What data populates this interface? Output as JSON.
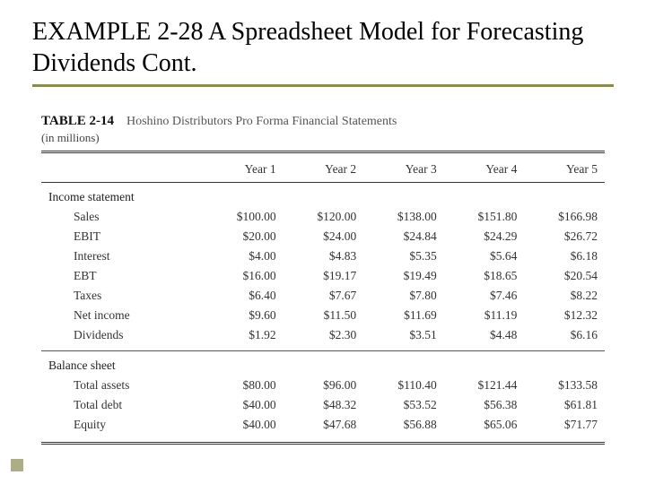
{
  "slide": {
    "title": "EXAMPLE 2-28 A Spreadsheet Model for Forecasting Dividends Cont.",
    "underline_color": "#8a8a55"
  },
  "table": {
    "id": "TABLE 2-14",
    "title": "Hoshino Distributors Pro Forma Financial Statements",
    "subtitle": "(in millions)",
    "double_rule_color": "#333333",
    "columns": [
      "Year 1",
      "Year 2",
      "Year 3",
      "Year 4",
      "Year 5"
    ],
    "sections": [
      {
        "name": "Income statement",
        "rows": [
          {
            "label": "Sales",
            "values": [
              "$100.00",
              "$120.00",
              "$138.00",
              "$151.80",
              "$166.98"
            ]
          },
          {
            "label": "EBIT",
            "values": [
              "$20.00",
              "$24.00",
              "$24.84",
              "$24.29",
              "$26.72"
            ]
          },
          {
            "label": "Interest",
            "values": [
              "$4.00",
              "$4.83",
              "$5.35",
              "$5.64",
              "$6.18"
            ]
          },
          {
            "label": "EBT",
            "values": [
              "$16.00",
              "$19.17",
              "$19.49",
              "$18.65",
              "$20.54"
            ]
          },
          {
            "label": "Taxes",
            "values": [
              "$6.40",
              "$7.67",
              "$7.80",
              "$7.46",
              "$8.22"
            ]
          },
          {
            "label": "Net income",
            "values": [
              "$9.60",
              "$11.50",
              "$11.69",
              "$11.19",
              "$12.32"
            ]
          },
          {
            "label": "Dividends",
            "values": [
              "$1.92",
              "$2.30",
              "$3.51",
              "$4.48",
              "$6.16"
            ]
          }
        ]
      },
      {
        "name": "Balance sheet",
        "rows": [
          {
            "label": "Total assets",
            "values": [
              "$80.00",
              "$96.00",
              "$110.40",
              "$121.44",
              "$133.58"
            ]
          },
          {
            "label": "Total debt",
            "values": [
              "$40.00",
              "$48.32",
              "$53.52",
              "$56.38",
              "$61.81"
            ]
          },
          {
            "label": "Equity",
            "values": [
              "$40.00",
              "$47.68",
              "$56.88",
              "$65.06",
              "$71.77"
            ]
          }
        ]
      }
    ]
  },
  "decor": {
    "corner_color": "#8a8a55"
  }
}
